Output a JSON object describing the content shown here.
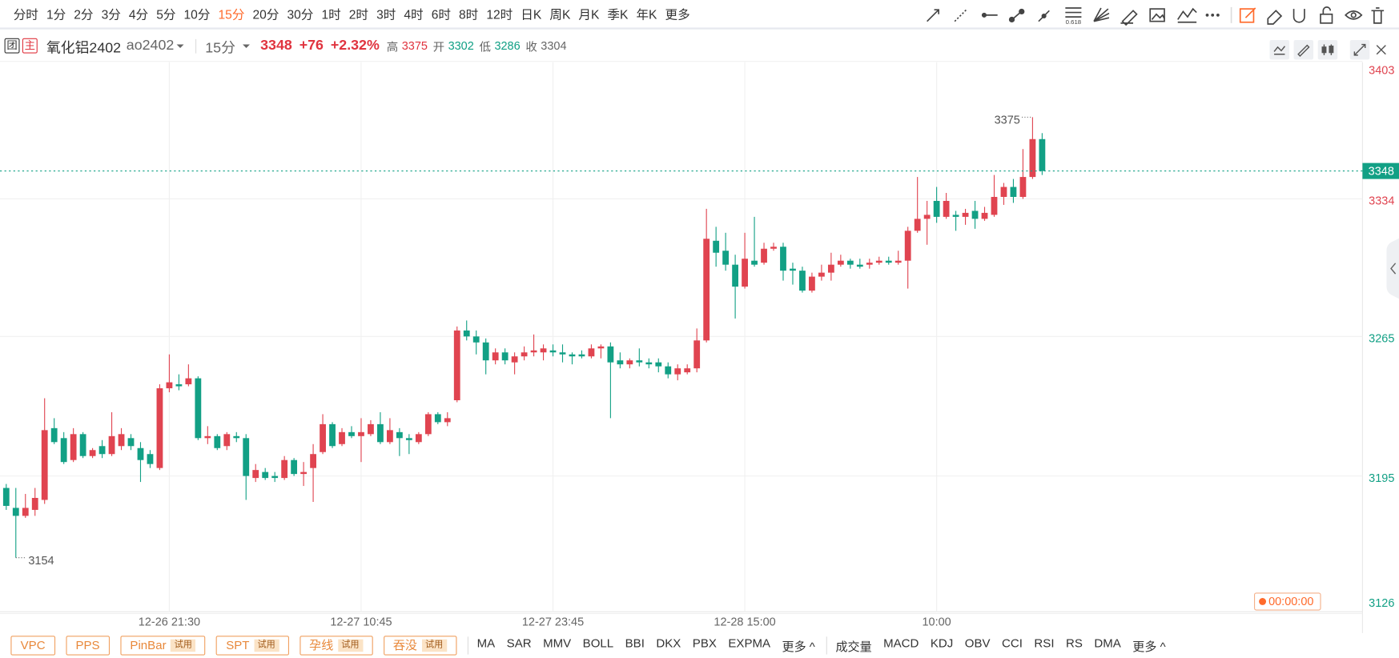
{
  "toolbar": {
    "periods": [
      "分时",
      "1分",
      "2分",
      "3分",
      "4分",
      "5分",
      "10分",
      "15分",
      "20分",
      "30分",
      "1时",
      "2时",
      "3时",
      "4时",
      "6时",
      "8时",
      "12时",
      "日K",
      "周K",
      "月K",
      "季K",
      "年K",
      "更多"
    ],
    "fib_label": "0.618"
  },
  "symbol": {
    "badges": [
      "团",
      "主"
    ],
    "name": "氧化铝2402",
    "code": "ao2402",
    "period": "15分",
    "last": 3348,
    "change": "+76",
    "change_pct": "+2.32%",
    "high_label": "高",
    "high": 3375,
    "open_label": "开",
    "open": 3302,
    "low_label": "低",
    "low": 3286,
    "close_label": "收",
    "close": 3304
  },
  "chart_data": {
    "type": "candlestick",
    "up_color": "#e04450",
    "down_color": "#12a085",
    "categories": [
      null,
      null,
      null,
      null,
      null,
      null,
      null,
      null,
      null,
      null,
      null,
      null,
      null,
      null,
      null,
      null,
      null,
      "12-26 21:30",
      null,
      null,
      null,
      null,
      null,
      null,
      null,
      null,
      null,
      null,
      null,
      null,
      null,
      null,
      null,
      null,
      null,
      null,
      null,
      "12-27 10:45",
      null,
      null,
      null,
      null,
      null,
      null,
      null,
      null,
      null,
      null,
      null,
      null,
      null,
      null,
      null,
      null,
      null,
      null,
      null,
      "12-27 23:45",
      null,
      null,
      null,
      null,
      null,
      null,
      null,
      null,
      null,
      null,
      null,
      null,
      null,
      null,
      null,
      null,
      null,
      null,
      null,
      "12-28 15:00",
      null,
      null,
      null,
      null,
      null,
      null,
      null,
      null,
      null,
      null,
      null,
      null,
      null,
      null,
      null,
      null,
      null,
      null,
      null,
      "10:00",
      null,
      null,
      null,
      null,
      null,
      null,
      null,
      null,
      null,
      null,
      null
    ],
    "open": [
      3189,
      3179,
      3175,
      3178,
      3183,
      3219,
      3214,
      3203,
      3216,
      3205,
      3210,
      3206,
      3210,
      3214,
      3209,
      3206,
      3199,
      3239,
      3241,
      3241,
      3244,
      3214,
      3215,
      3210,
      3215,
      3214,
      3194,
      3197,
      3195,
      3194,
      3203,
      3196,
      3199,
      3207,
      3221,
      3211,
      3217,
      3215,
      3216,
      3221,
      3212,
      3217,
      3214,
      3212,
      3216,
      3226,
      3222,
      3233,
      3268,
      3265,
      3262,
      3253,
      3257,
      3252,
      3255,
      3257,
      3257,
      3258,
      3257,
      3256,
      3256,
      3255,
      3259,
      3260,
      3253,
      3251,
      3253,
      3252,
      3252,
      3250,
      3246,
      3247,
      3249,
      3263,
      3313,
      3308,
      3301,
      3290,
      3303,
      3302,
      3309,
      3310,
      3299,
      3298,
      3288,
      3295,
      3297,
      3301,
      3303,
      3301,
      3301,
      3302,
      3303,
      3302,
      3303,
      3318,
      3324,
      3333,
      3325,
      3326,
      3325,
      3328,
      3324,
      3326,
      3335,
      3340,
      3335,
      3345,
      3364
    ],
    "high": [
      3191,
      3189,
      3186,
      3189,
      3234,
      3224,
      3217,
      3219,
      3217,
      3209,
      3213,
      3227,
      3219,
      3216,
      3212,
      3208,
      3241,
      3256,
      3246,
      3251,
      3245,
      3220,
      3216,
      3217,
      3217,
      3216,
      3201,
      3199,
      3197,
      3205,
      3204,
      3202,
      3211,
      3226,
      3222,
      3219,
      3220,
      3224,
      3223,
      3227,
      3224,
      3219,
      3216,
      3217,
      3227,
      3227,
      3227,
      3270,
      3273,
      3268,
      3264,
      3259,
      3259,
      3257,
      3260,
      3266,
      3261,
      3261,
      3261,
      3257,
      3258,
      3261,
      3261,
      3262,
      3257,
      3254,
      3259,
      3254,
      3254,
      3252,
      3251,
      3251,
      3269,
      3329,
      3320,
      3317,
      3306,
      3317,
      3325,
      3312,
      3312,
      3312,
      3302,
      3300,
      3297,
      3301,
      3307,
      3306,
      3304,
      3304,
      3304,
      3305,
      3305,
      3308,
      3320,
      3345,
      3333,
      3340,
      3337,
      3328,
      3329,
      3333,
      3330,
      3346,
      3342,
      3344,
      3359,
      3375,
      3367
    ],
    "low": [
      3178,
      3154,
      3174,
      3175,
      3181,
      3211,
      3201,
      3202,
      3204,
      3204,
      3204,
      3205,
      3208,
      3208,
      3192,
      3199,
      3198,
      3237,
      3238,
      3240,
      3213,
      3211,
      3208,
      3208,
      3212,
      3183,
      3192,
      3193,
      3192,
      3193,
      3195,
      3190,
      3182,
      3206,
      3209,
      3210,
      3214,
      3202,
      3215,
      3211,
      3211,
      3205,
      3206,
      3211,
      3215,
      3221,
      3220,
      3232,
      3263,
      3256,
      3246,
      3251,
      3251,
      3246,
      3253,
      3255,
      3253,
      3255,
      3252,
      3251,
      3254,
      3254,
      3254,
      3224,
      3249,
      3249,
      3250,
      3249,
      3247,
      3244,
      3243,
      3246,
      3247,
      3262,
      3300,
      3298,
      3274,
      3289,
      3300,
      3301,
      3308,
      3293,
      3291,
      3287,
      3287,
      3293,
      3293,
      3300,
      3299,
      3299,
      3299,
      3301,
      3301,
      3301,
      3289,
      3317,
      3311,
      3322,
      3324,
      3318,
      3321,
      3319,
      3323,
      3325,
      3331,
      3332,
      3334,
      3344,
      3346
    ],
    "close": [
      3180,
      3175,
      3179,
      3184,
      3218,
      3212,
      3202,
      3216,
      3205,
      3208,
      3206,
      3215,
      3216,
      3210,
      3203,
      3201,
      3239,
      3242,
      3240,
      3244,
      3214,
      3215,
      3209,
      3216,
      3214,
      3195,
      3198,
      3194,
      3194,
      3203,
      3196,
      3197,
      3206,
      3221,
      3210,
      3217,
      3215,
      3217,
      3221,
      3212,
      3218,
      3214,
      3213,
      3216,
      3226,
      3222,
      3224,
      3268,
      3265,
      3262,
      3253,
      3257,
      3253,
      3255,
      3257,
      3258,
      3259,
      3257,
      3256,
      3255,
      3255,
      3259,
      3260,
      3252,
      3251,
      3253,
      3252,
      3251,
      3250,
      3246,
      3249,
      3249,
      3263,
      3314,
      3307,
      3301,
      3290,
      3304,
      3301,
      3309,
      3310,
      3298,
      3298,
      3288,
      3295,
      3297,
      3301,
      3303,
      3301,
      3300,
      3302,
      3303,
      3302,
      3303,
      3318,
      3324,
      3326,
      3325,
      3333,
      3325,
      3327,
      3324,
      3327,
      3335,
      3340,
      3335,
      3345,
      3364,
      3348
    ],
    "ylim": [
      3126,
      3403
    ],
    "yticks": [
      3403,
      3334,
      3265,
      3195,
      3126
    ],
    "ytick_colors": [
      "#e04450",
      "#e04450",
      "#12a085",
      "#12a085",
      "#12a085"
    ],
    "last_color": "#12a085",
    "countdown": "00:00:00"
  },
  "indicator_bar": {
    "tools": [
      {
        "name": "VPC"
      },
      {
        "name": "PPS"
      },
      {
        "name": "PinBar",
        "tag": "试用"
      },
      {
        "name": "SPT",
        "tag": "试用"
      },
      {
        "name": "孕线",
        "tag": "试用"
      },
      {
        "name": "吞没",
        "tag": "试用"
      }
    ],
    "main": [
      "MA",
      "SAR",
      "MMV",
      "BOLL",
      "BBI",
      "DKX",
      "PBX",
      "EXPMA",
      "更多 ^"
    ],
    "sub": [
      "成交量",
      "MACD",
      "KDJ",
      "OBV",
      "CCI",
      "RSI",
      "RS",
      "DMA",
      "更多 ^"
    ]
  }
}
